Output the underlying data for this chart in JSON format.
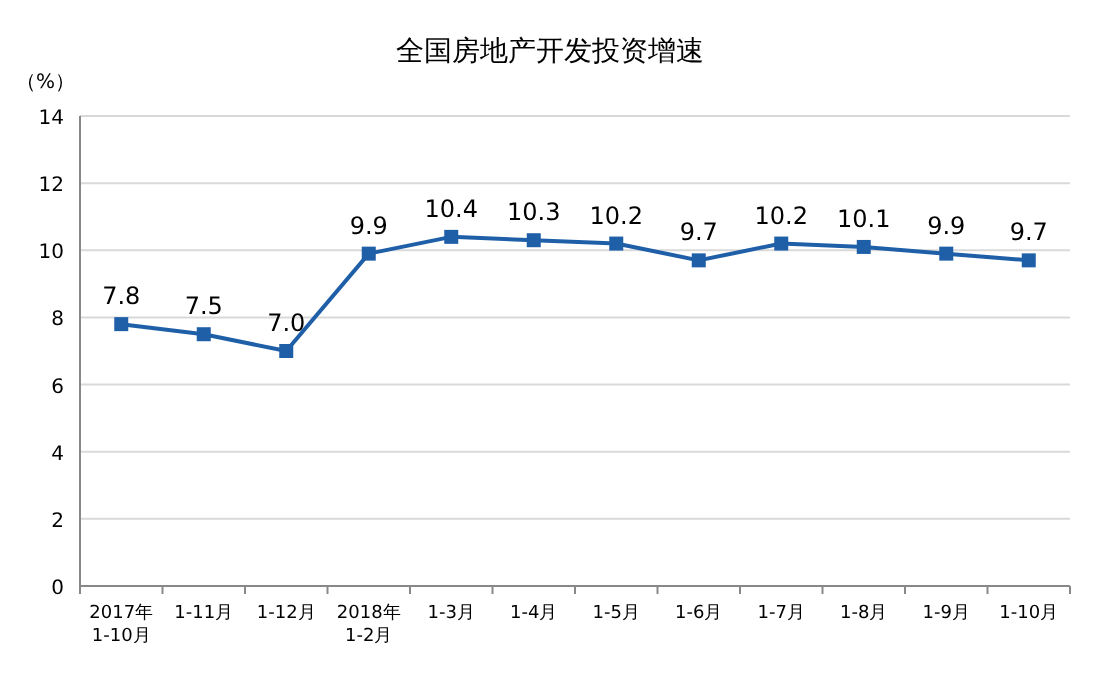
{
  "chart_data": {
    "type": "line",
    "title": "全国房地产开发投资增速",
    "ylabel": "（%）",
    "categories": [
      "2017年\n1-10月",
      "1-11月",
      "1-12月",
      "2018年\n1-2月",
      "1-3月",
      "1-4月",
      "1-5月",
      "1-6月",
      "1-7月",
      "1-8月",
      "1-9月",
      "1-10月"
    ],
    "series": [
      {
        "color": "#1f5fa8",
        "values": [
          7.8,
          7.5,
          7.0,
          9.9,
          10.4,
          10.3,
          10.2,
          9.7,
          10.2,
          10.1,
          9.9,
          9.7
        ],
        "value_labels": [
          "7.8",
          "7.5",
          "7.0",
          "9.9",
          "10.4",
          "10.3",
          "10.2",
          "9.7",
          "10.2",
          "10.1",
          "9.9",
          "9.7"
        ]
      }
    ],
    "ylim": [
      0,
      14
    ],
    "yticks": [
      0,
      2,
      4,
      6,
      8,
      10,
      12,
      14
    ],
    "grid": "y",
    "marker": "square",
    "line_style": "solid"
  }
}
